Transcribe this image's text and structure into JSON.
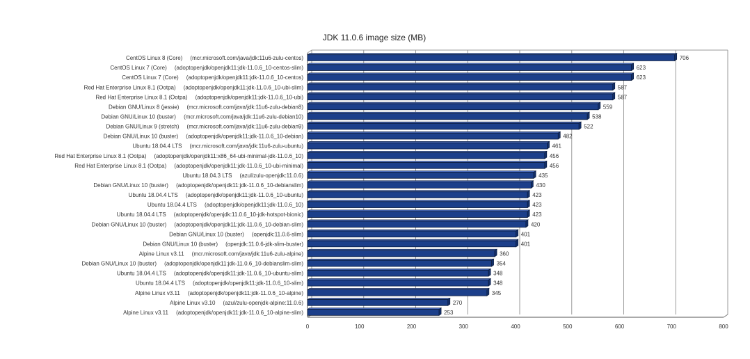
{
  "chart_data": {
    "type": "bar",
    "orientation": "horizontal",
    "title": "JDK 11.0.6 image size (MB)",
    "xlabel": "",
    "ylabel": "",
    "xlim": [
      0,
      800
    ],
    "ticks": [
      "0",
      "100",
      "200",
      "300",
      "400",
      "500",
      "600",
      "700",
      "800"
    ],
    "grid": true,
    "legend": "none",
    "colors": {
      "bar": "#1c3f8a",
      "bar_dark": "#0a1a3a",
      "bar_side": "#14306a",
      "grid": "#9a9a9a"
    },
    "categories": [
      "CentOS Linux 8 (Core)     (mcr.microsoft.com/java/jdk:11u6-zulu-centos)",
      "CentOS Linux 7 (Core)     (adoptopenjdk/openjdk11:jdk-11.0.6_10-centos-slim)",
      "CentOS Linux 7 (Core)     (adoptopenjdk/openjdk11:jdk-11.0.6_10-centos)",
      "Red Hat Enterprise Linux 8.1 (Ootpa)     (adoptopenjdk/openjdk11:jdk-11.0.6_10-ubi-slim)",
      "Red Hat Enterprise Linux 8.1 (Ootpa)     (adoptopenjdk/openjdk11:jdk-11.0.6_10-ubi)",
      "Debian GNU/Linux 8 (jessie)     (mcr.microsoft.com/java/jdk:11u6-zulu-debian8)",
      "Debian GNU/Linux 10 (buster)     (mcr.microsoft.com/java/jdk:11u6-zulu-debian10)",
      "Debian GNU/Linux 9 (stretch)     (mcr.microsoft.com/java/jdk:11u6-zulu-debian9)",
      "Debian GNU/Linux 10 (buster)     (adoptopenjdk/openjdk11:jdk-11.0.6_10-debian)",
      "Ubuntu 18.04.4 LTS     (mcr.microsoft.com/java/jdk:11u6-zulu-ubuntu)",
      "Red Hat Enterprise Linux 8.1 (Ootpa)     (adoptopenjdk/openjdk11:x86_64-ubi-minimal-jdk-11.0.6_10)",
      "Red Hat Enterprise Linux 8.1 (Ootpa)     (adoptopenjdk/openjdk11:jdk-11.0.6_10-ubi-minimal)",
      "Ubuntu 18.04.3 LTS     (azul/zulu-openjdk:11.0.6)",
      "Debian GNU/Linux 10 (buster)     (adoptopenjdk/openjdk11:jdk-11.0.6_10-debianslim)",
      "Ubuntu 18.04.4 LTS     (adoptopenjdk/openjdk11:jdk-11.0.6_10-ubuntu)",
      "Ubuntu 18.04.4 LTS     (adoptopenjdk/openjdk11:jdk-11.0.6_10)",
      "Ubuntu 18.04.4 LTS     (adoptopenjdk/openjdk:11.0.6_10-jdk-hotspot-bionic)",
      "Debian GNU/Linux 10 (buster)     (adoptopenjdk/openjdk11:jdk-11.0.6_10-debian-slim)",
      "Debian GNU/Linux 10 (buster)     (openjdk:11.0.6-slim)",
      "Debian GNU/Linux 10 (buster)     (openjdk:11.0.6-jdk-slim-buster)",
      "Alpine Linux v3.11     (mcr.microsoft.com/java/jdk:11u6-zulu-alpine)",
      "Debian GNU/Linux 10 (buster)     (adoptopenjdk/openjdk11:jdk-11.0.6_10-debianslim-slim)",
      "Ubuntu 18.04.4 LTS     (adoptopenjdk/openjdk11:jdk-11.0.6_10-ubuntu-slim)",
      "Ubuntu 18.04.4 LTS     (adoptopenjdk/openjdk11:jdk-11.0.6_10-slim)",
      "Alpine Linux v3.11     (adoptopenjdk/openjdk11:jdk-11.0.6_10-alpine)",
      "Alpine Linux v3.10     (azul/zulu-openjdk-alpine:11.0.6)",
      "Alpine Linux v3.11     (adoptopenjdk/openjdk11:jdk-11.0.6_10-alpine-slim)"
    ],
    "values": [
      706,
      623,
      623,
      587,
      587,
      559,
      538,
      522,
      482,
      461,
      456,
      456,
      435,
      430,
      423,
      423,
      423,
      420,
      401,
      401,
      360,
      354,
      348,
      348,
      345,
      270,
      253
    ]
  }
}
